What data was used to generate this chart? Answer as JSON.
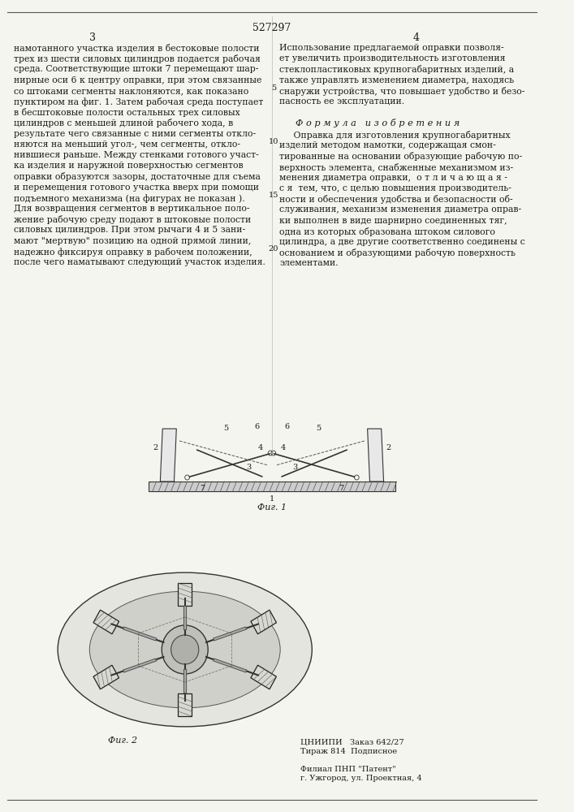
{
  "page_number_center": "527297",
  "col_left_number": "3",
  "col_right_number": "4",
  "background_color": "#f5f5f0",
  "border_color": "#888888",
  "text_color": "#1a1a1a",
  "title_font_size": 9,
  "body_font_size": 7.5,
  "col_left_text": [
    "намотанного участка изделия в бестоковые полости",
    "трех из шести силовых цилиндров подается рабочая",
    "среда. Соответствующие штоки 7 перемещают шар-",
    "нирные оси 6 к центру оправки, при этом связанные",
    "со штоками сегменты наклоняются, как показано",
    "пунктиром на фиг. 1. Затем рабочая среда поступает",
    "в бесштоковые полости остальных трех силовых",
    "цилиндров с меньшей длиной рабочего хода, в",
    "результате чего связанные с ними сегменты откло-",
    "няются на меньший угол-, чем сегменты, откло-",
    "нившиеся раньше. Между стенками готового участ-",
    "ка изделия и наружной поверхностью сегментов",
    "оправки образуются зазоры, достаточные для съема",
    "и перемещения готового участка вверх при помощи",
    "подъемного механизма (на фигурах не показан ).",
    "Для возвращения сегментов в вертикальное поло-",
    "жение рабочую среду подают в штоковые полости",
    "силовых цилиндров. При этом рычаги 4 и 5 зани-",
    "мают \"мертвую\" позицию на одной прямой линии,",
    "надежно фиксируя оправку в рабочем положении,",
    "после чего наматывают следующий участок изделия."
  ],
  "col_right_text_top": [
    "Использование предлагаемой оправки позволя-",
    "ет увеличить производительность изготовления",
    "стеклопластиковых крупногабаритных изделий, а",
    "также управлять изменением диаметра, находясь",
    "снаружи устройства, что повышает удобство и безо-",
    "пасность ее эксплуатации."
  ],
  "formula_title": "Ф о р м у л а   и з о б р е т е н и я",
  "formula_text": [
    "     Оправка для изготовления крупногабаритных",
    "изделий методом намотки, содержащая смон-",
    "тированные на основании образующие рабочую по-",
    "верхность элемента, снабженные механизмом из-",
    "менения диаметра оправки,  о т л и ч а ю щ а я -",
    "с я  тем, что, с целью повышения производитель-",
    "ности и обеспечения удобства и безопасности об-",
    "служивания, механизм изменения диаметра оправ-",
    "ки выполнен в виде шарнирно соединенных тяг,",
    "одна из которых образована штоком силового",
    "цилиндра, а две другие соответственно соединены с",
    "основанием и образующими рабочую поверхность",
    "элементами."
  ],
  "line_numbers_left": [
    "5",
    "10",
    "15",
    "20"
  ],
  "fig1_label": "Фиг. 1",
  "fig2_label": "Фиг. 2",
  "bottom_right_text": [
    "ЦНИИПИ   Заказ 642/27",
    "Тираж 814  Подписное",
    "",
    "Филиал ПНП \"Патент\"",
    "г. Ужгород, ул. Проектная, 4"
  ]
}
